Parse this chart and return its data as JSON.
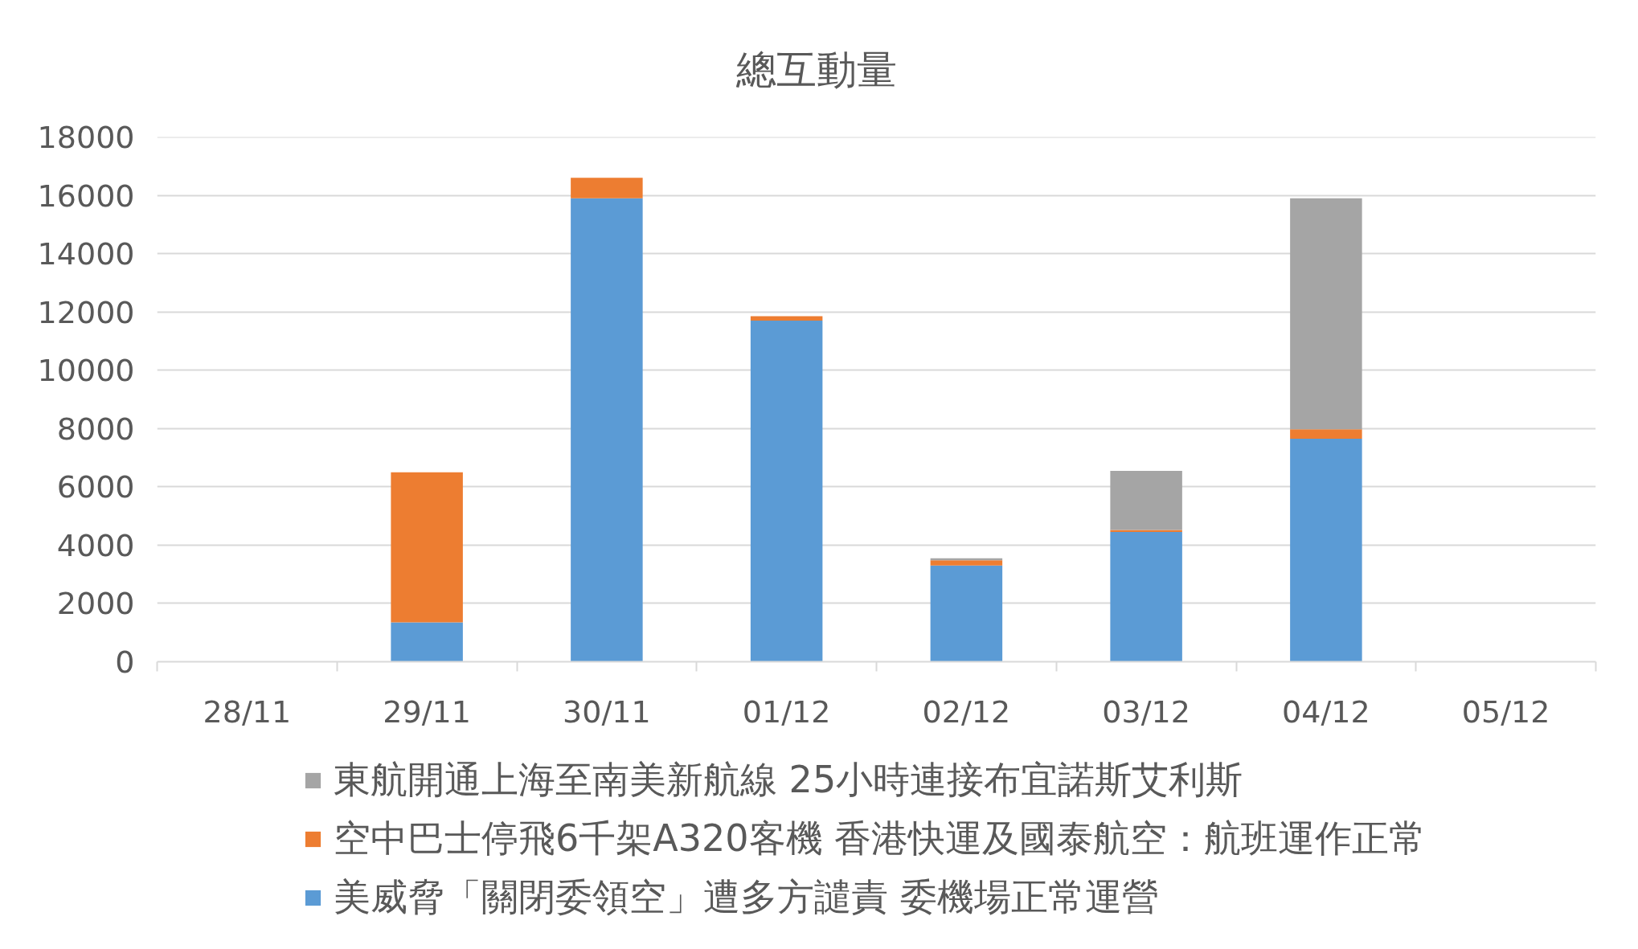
{
  "chart_data": {
    "type": "bar",
    "title": "總互動量",
    "stacked": true,
    "categories": [
      "28/11",
      "29/11",
      "30/11",
      "01/12",
      "02/12",
      "03/12",
      "04/12",
      "05/12"
    ],
    "series": [
      {
        "name": "美威脅「關閉委領空」遭多方譴責 委機場正常運營",
        "color": "#5b9bd5",
        "values": [
          null,
          1350,
          15900,
          11700,
          3300,
          4450,
          7650,
          null
        ]
      },
      {
        "name": "空中巴士停飛6千架A320客機 香港快運及國泰航空：航班運作正常",
        "color": "#ed7d31",
        "values": [
          null,
          5150,
          700,
          150,
          180,
          70,
          320,
          null
        ]
      },
      {
        "name": "東航開通上海至南美新航線 25小時連接布宜諾斯艾利斯",
        "color": "#a5a5a5",
        "values": [
          null,
          null,
          null,
          null,
          70,
          2030,
          7930,
          null
        ]
      }
    ],
    "ylim": [
      0,
      18000
    ],
    "yticks": [
      0,
      2000,
      4000,
      6000,
      8000,
      10000,
      12000,
      14000,
      16000,
      18000
    ],
    "grid": "y",
    "legend": "bottom"
  }
}
